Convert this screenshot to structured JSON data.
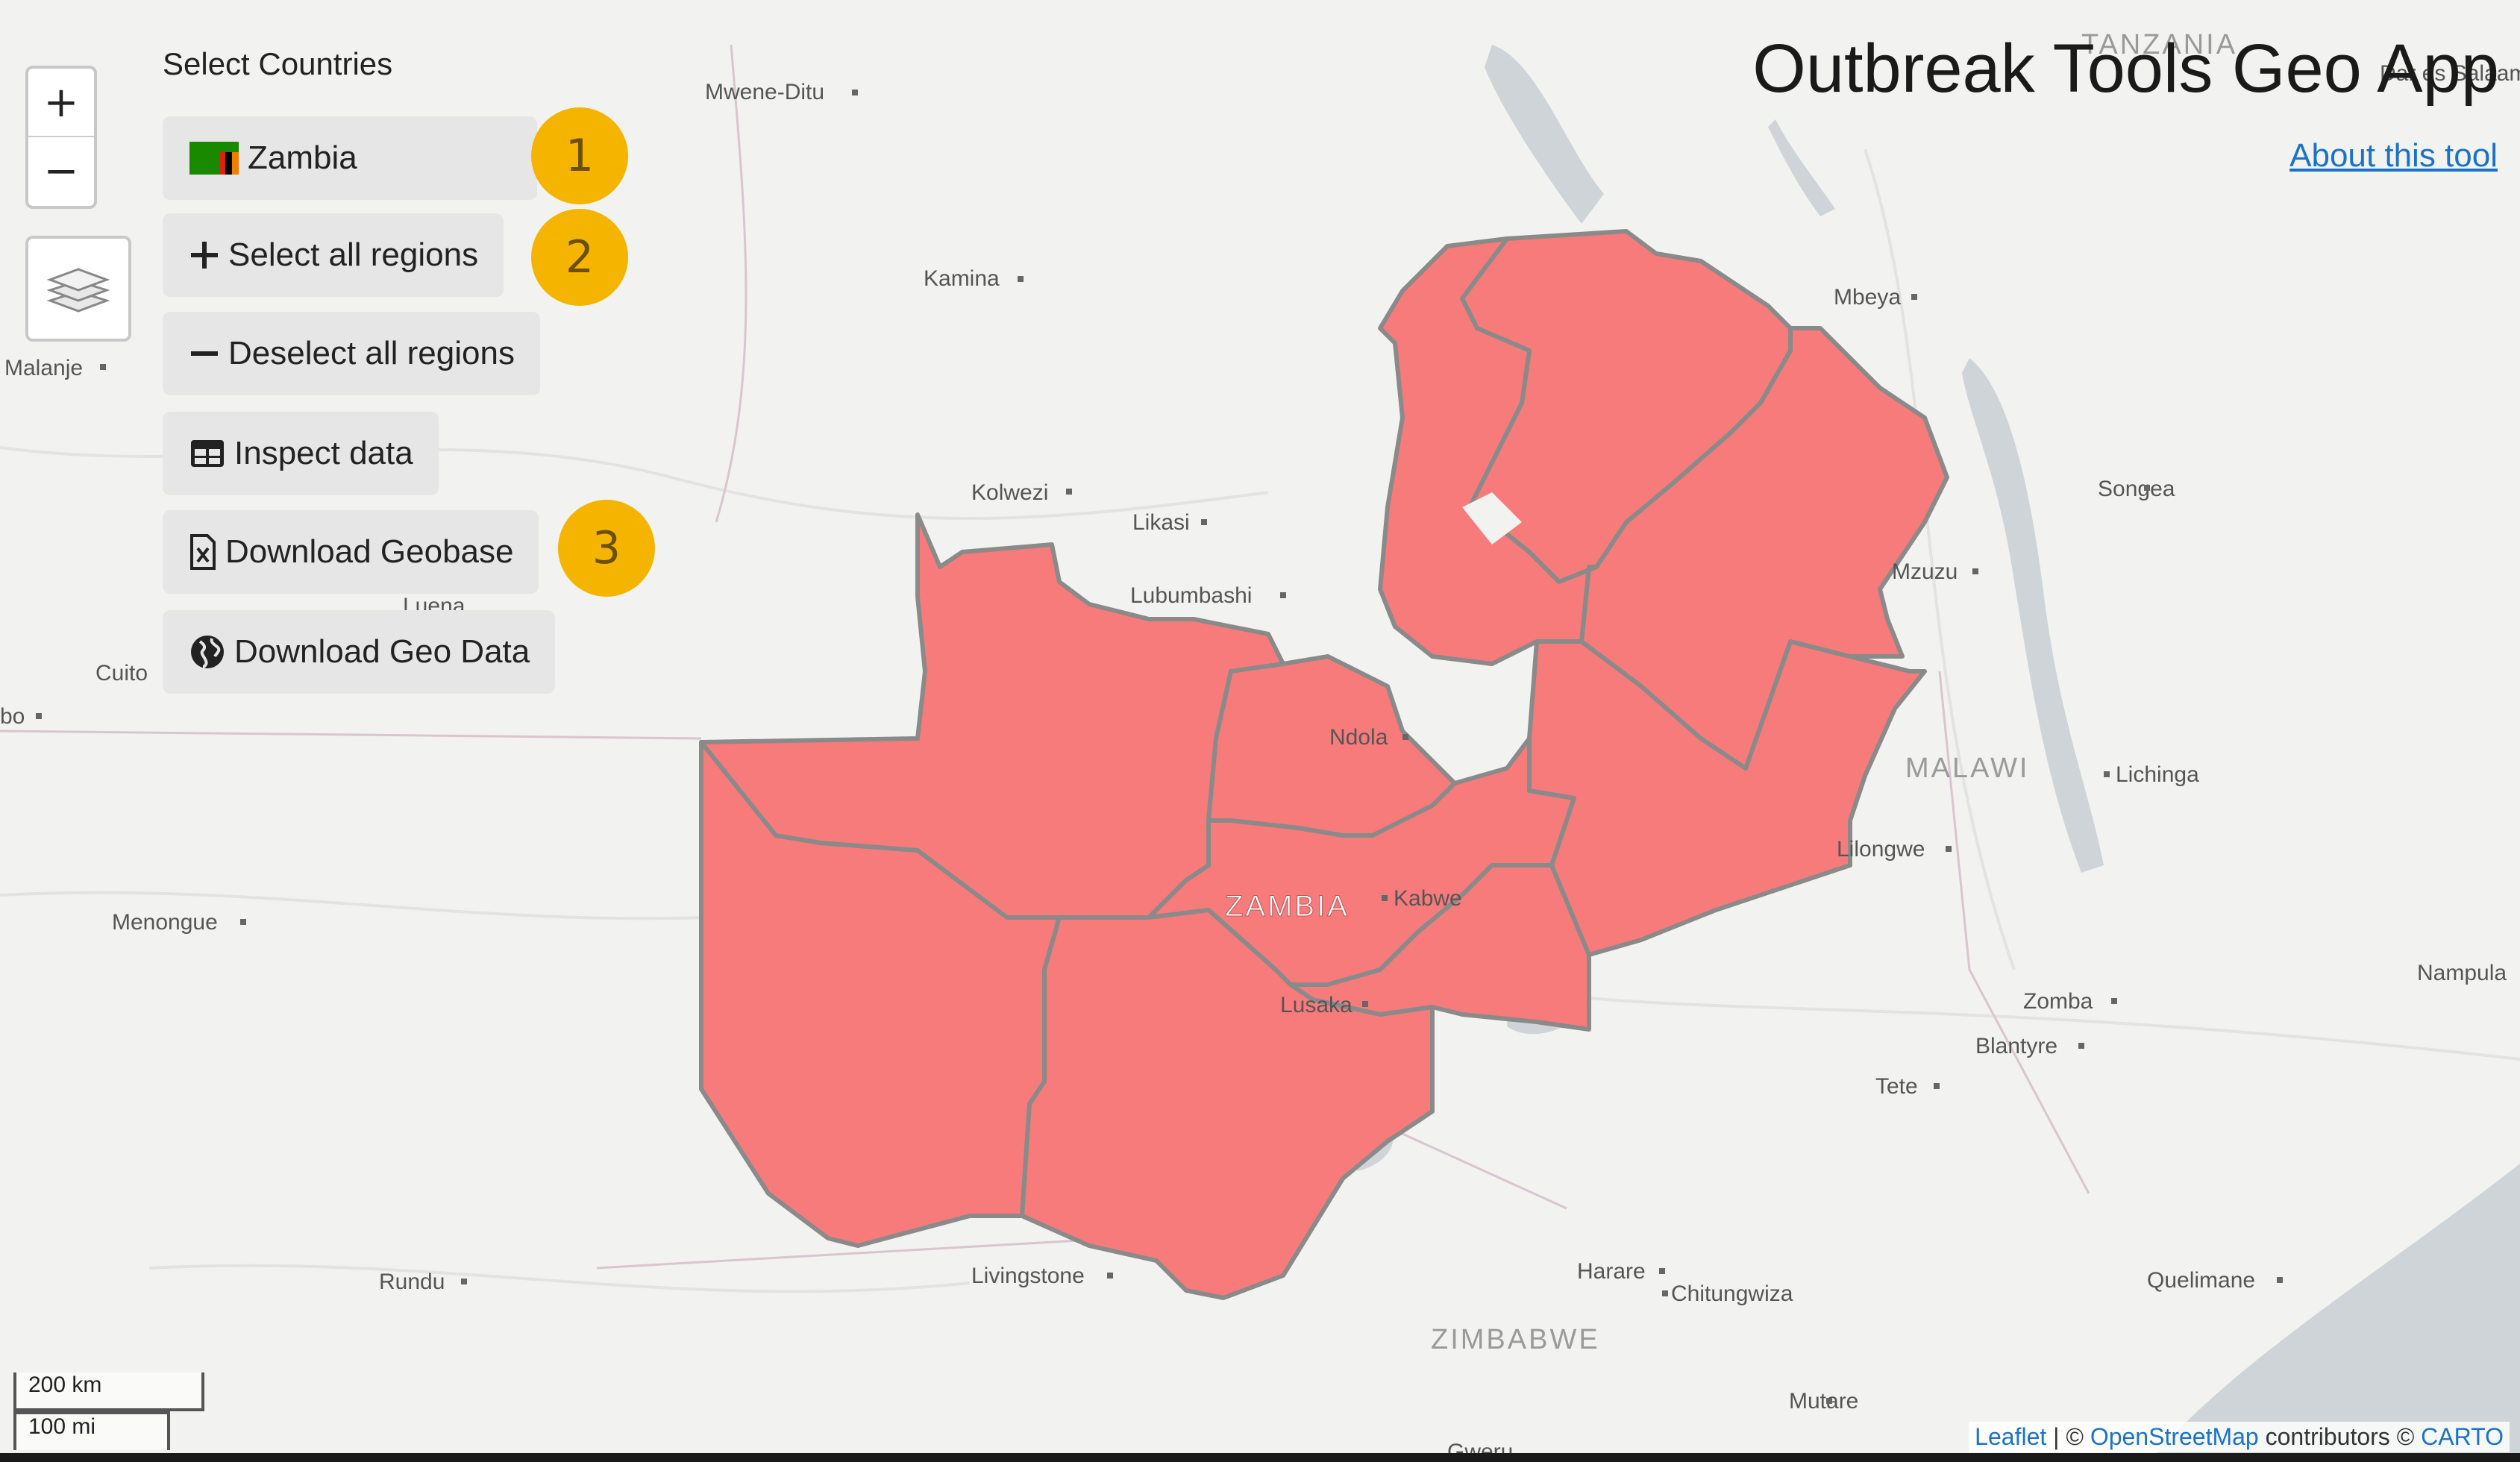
{
  "app": {
    "title": "Outbreak Tools Geo App",
    "about_link": "About this tool"
  },
  "controls": {
    "zoom_in": "+",
    "zoom_out": "−",
    "layers_icon": "layers-icon"
  },
  "panel": {
    "heading": "Select Countries",
    "country_button": "Zambia",
    "select_all": "Select all regions",
    "deselect_all": "Deselect all regions",
    "inspect": "Inspect data",
    "download_geobase": "Download Geobase",
    "download_geodata": "Download Geo Data"
  },
  "badges": [
    "1",
    "2",
    "3"
  ],
  "map": {
    "selected_fill": "#f77b7b",
    "selected_stroke": "#8a8a8a",
    "zambia_label": "ZAMBIA",
    "country_labels": {
      "malawi": "MALAWI",
      "zimbabwe": "ZIMBABWE",
      "tanzania": "TANZANIA"
    },
    "cities": {
      "mwene_ditu": "Mwene-Ditu",
      "kamina": "Kamina",
      "malanje": "Malanje",
      "kolwezi": "Kolwezi",
      "likasi": "Likasi",
      "lubumbashi": "Lubumbashi",
      "luena": "Luena",
      "cuito": "Cuito",
      "huambo": "bo",
      "menongue": "Menongue",
      "rundu": "Rundu",
      "livingstone": "Livingstone",
      "ndola": "Ndola",
      "kabwe": "Kabwe",
      "lusaka": "Lusaka",
      "mbeya": "Mbeya",
      "songea": "Songea",
      "mzuzu": "Mzuzu",
      "lichinga": "Lichinga",
      "lilongwe": "Lilongwe",
      "zomba": "Zomba",
      "blantyre": "Blantyre",
      "tete": "Tete",
      "nampula": "Nampula",
      "harare": "Harare",
      "chitungwiza": "Chitungwiza",
      "mutare": "Mutare",
      "quelimane": "Quelimane",
      "gweru": "Gweru",
      "dar_es_salaam": "Dar es Salaam"
    }
  },
  "scale": {
    "km": "200 km",
    "mi": "100 mi"
  },
  "attribution": {
    "leaflet": "Leaflet",
    "sep": " | © ",
    "osm": "OpenStreetMap",
    "contrib": " contributors © ",
    "carto": "CARTO"
  }
}
